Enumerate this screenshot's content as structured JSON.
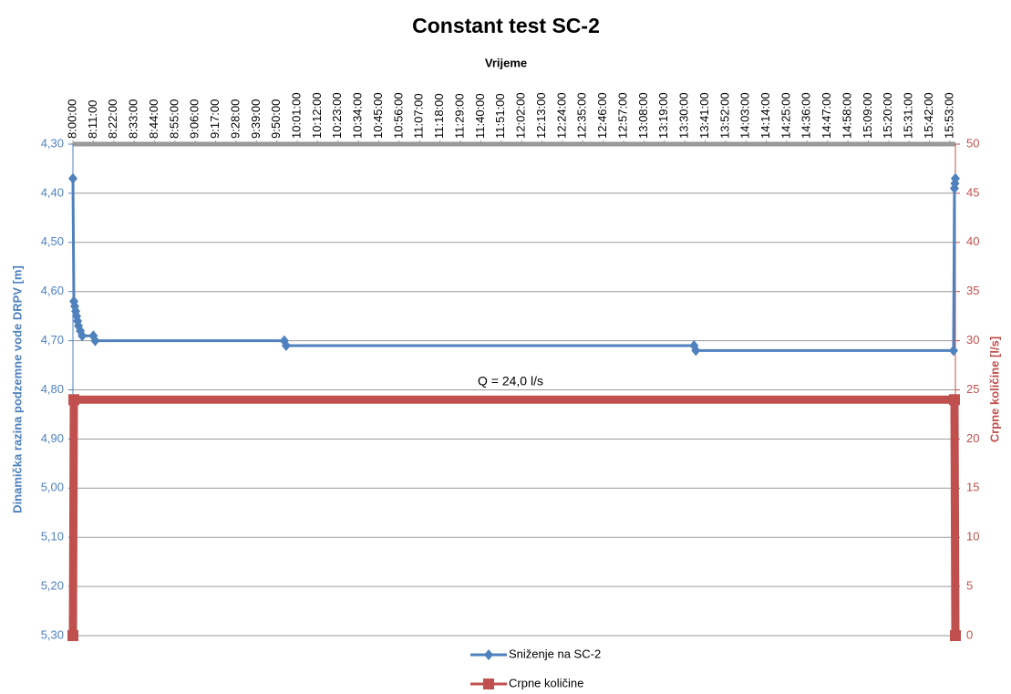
{
  "chart_data": {
    "type": "line",
    "title": "Constant test SC-2",
    "x_label": "Vrijeme",
    "y_label": "Dinamička razina podzemne vode DRPV [m]",
    "y2_label": "Crpne količine [l/s]",
    "annotation": "Q = 24,0 l/s",
    "xlim": [
      "8:00:00",
      "15:56:00"
    ],
    "xticks": [
      "8:00:00",
      "8:11:00",
      "8:22:00",
      "8:33:00",
      "8:44:00",
      "8:55:00",
      "9:06:00",
      "9:17:00",
      "9:28:00",
      "9:39:00",
      "9:50:00",
      "10:01:00",
      "10:12:00",
      "10:23:00",
      "10:34:00",
      "10:45:00",
      "10:56:00",
      "11:07:00",
      "11:18:00",
      "11:29:00",
      "11:40:00",
      "11:51:00",
      "12:02:00",
      "12:13:00",
      "12:24:00",
      "12:35:00",
      "12:46:00",
      "12:57:00",
      "13:08:00",
      "13:19:00",
      "13:30:00",
      "13:41:00",
      "13:52:00",
      "14:03:00",
      "14:14:00",
      "14:25:00",
      "14:36:00",
      "14:47:00",
      "14:58:00",
      "15:09:00",
      "15:20:00",
      "15:31:00",
      "15:42:00",
      "15:53:00"
    ],
    "ylim": [
      4.3,
      5.3
    ],
    "y_inverted": true,
    "yticks": [
      {
        "value": 4.3,
        "label": "4,30"
      },
      {
        "value": 4.4,
        "label": "4,40"
      },
      {
        "value": 4.5,
        "label": "4,50"
      },
      {
        "value": 4.6,
        "label": "4,60"
      },
      {
        "value": 4.7,
        "label": "4,70"
      },
      {
        "value": 4.8,
        "label": "4,80"
      },
      {
        "value": 4.9,
        "label": "4,90"
      },
      {
        "value": 5.0,
        "label": "5,00"
      },
      {
        "value": 5.1,
        "label": "5,10"
      },
      {
        "value": 5.2,
        "label": "5,20"
      },
      {
        "value": 5.3,
        "label": "5,30"
      }
    ],
    "y2lim": [
      0,
      50
    ],
    "y2ticks": [
      0,
      5,
      10,
      15,
      20,
      25,
      30,
      35,
      40,
      45,
      50
    ],
    "grid": true,
    "legend": "bottom",
    "series": [
      {
        "name": "Sniženje na SC-2",
        "color": "#4f81bd",
        "marker": "diamond",
        "x": [
          "8:00:00",
          "8:00:30",
          "8:01:00",
          "8:01:30",
          "8:02:00",
          "8:02:30",
          "8:03:00",
          "8:04:00",
          "8:05:00",
          "8:11:00",
          "8:12:00",
          "9:54:00",
          "9:55:00",
          "13:35:00",
          "13:36:00",
          "15:55:00",
          "15:55:30",
          "15:55:45",
          "15:56:00"
        ],
        "values": [
          4.37,
          4.62,
          4.63,
          4.64,
          4.65,
          4.66,
          4.67,
          4.68,
          4.69,
          4.69,
          4.7,
          4.7,
          4.71,
          4.71,
          4.72,
          4.72,
          4.39,
          4.38,
          4.37
        ]
      },
      {
        "name": "Crpne količine",
        "color": "#c0504d",
        "marker": "square",
        "axis": "y2",
        "x": [
          "8:00:00",
          "8:00:30",
          "15:55:30",
          "15:56:00"
        ],
        "values": [
          0,
          24,
          24,
          0
        ]
      }
    ]
  }
}
